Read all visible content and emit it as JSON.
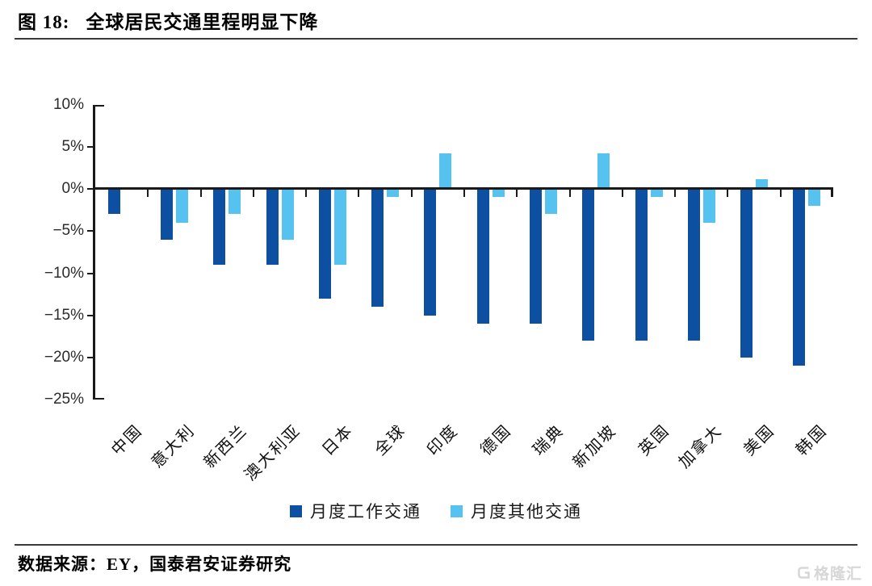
{
  "header": {
    "figure_label": "图 18:",
    "title": "全球居民交通里程明显下降"
  },
  "chart_data": {
    "type": "bar",
    "title": "全球居民交通里程明显下降",
    "categories": [
      "中国",
      "意大利",
      "新西兰",
      "澳大利亚",
      "日本",
      "全球",
      "印度",
      "德国",
      "瑞典",
      "新加坡",
      "英国",
      "加拿大",
      "美国",
      "韩国"
    ],
    "series": [
      {
        "name": "月度工作交通",
        "color": "#0d4fa1",
        "values": [
          -3,
          -6,
          -9,
          -9,
          -13,
          -14,
          -15,
          -16,
          -16,
          -18,
          -18,
          -18,
          -20,
          -21
        ]
      },
      {
        "name": "月度其他交通",
        "color": "#56c2f0",
        "values": [
          0,
          -4,
          -3,
          -6,
          -9,
          -1,
          4,
          -1,
          -3,
          4,
          -1,
          -4,
          1,
          -2
        ]
      }
    ],
    "xlabel": "",
    "ylabel": "",
    "ylim": [
      -25,
      10
    ],
    "yticks": [
      10,
      5,
      0,
      -5,
      -10,
      -15,
      -20,
      -25
    ],
    "ytick_suffix": "%",
    "grid": false,
    "legend_position": "bottom"
  },
  "footer": {
    "source": "数据来源：EY，国泰君安证券研究",
    "watermark": "格隆汇"
  }
}
